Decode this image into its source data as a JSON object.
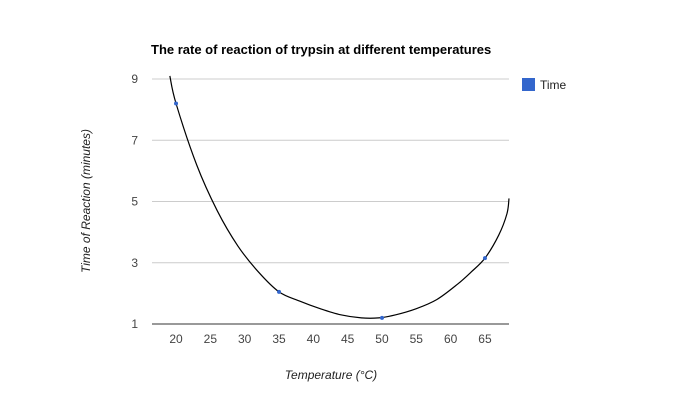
{
  "chart_data": {
    "type": "scatter",
    "title": "The rate of reaction of trypsin at different temperatures",
    "xlabel": "Temperature (°C)",
    "ylabel": "Time of Reaction (minutes)",
    "x_ticks": [
      "20",
      "25",
      "30",
      "35",
      "40",
      "45",
      "50",
      "55",
      "60",
      "65"
    ],
    "y_ticks": [
      "1",
      "3",
      "5",
      "7",
      "9"
    ],
    "xlim": [
      16.5,
      68.5
    ],
    "ylim": [
      1,
      9
    ],
    "grid": true,
    "legend": {
      "position": "right",
      "label": "Time"
    },
    "series": [
      {
        "name": "Time",
        "color": "#3366cc",
        "points": [
          {
            "x": 20,
            "y": 8.2
          },
          {
            "x": 35,
            "y": 2.05
          },
          {
            "x": 50,
            "y": 1.2
          },
          {
            "x": 65,
            "y": 3.15
          }
        ]
      }
    ],
    "trendline": {
      "type": "polynomial",
      "color": "#000000",
      "x_range": [
        19.1,
        68.5
      ],
      "points": [
        {
          "x": 19.1,
          "y": 9.1
        },
        {
          "x": 20,
          "y": 8.2
        },
        {
          "x": 23,
          "y": 6.2
        },
        {
          "x": 26,
          "y": 4.7
        },
        {
          "x": 29,
          "y": 3.55
        },
        {
          "x": 32,
          "y": 2.7
        },
        {
          "x": 35,
          "y": 2.05
        },
        {
          "x": 38,
          "y": 1.75
        },
        {
          "x": 41,
          "y": 1.5
        },
        {
          "x": 44,
          "y": 1.3
        },
        {
          "x": 47,
          "y": 1.2
        },
        {
          "x": 49.5,
          "y": 1.2
        },
        {
          "x": 52,
          "y": 1.3
        },
        {
          "x": 55,
          "y": 1.5
        },
        {
          "x": 58,
          "y": 1.8
        },
        {
          "x": 61,
          "y": 2.3
        },
        {
          "x": 63,
          "y": 2.7
        },
        {
          "x": 65,
          "y": 3.15
        },
        {
          "x": 67,
          "y": 3.9
        },
        {
          "x": 68.2,
          "y": 4.6
        },
        {
          "x": 68.5,
          "y": 5.1
        }
      ]
    }
  }
}
